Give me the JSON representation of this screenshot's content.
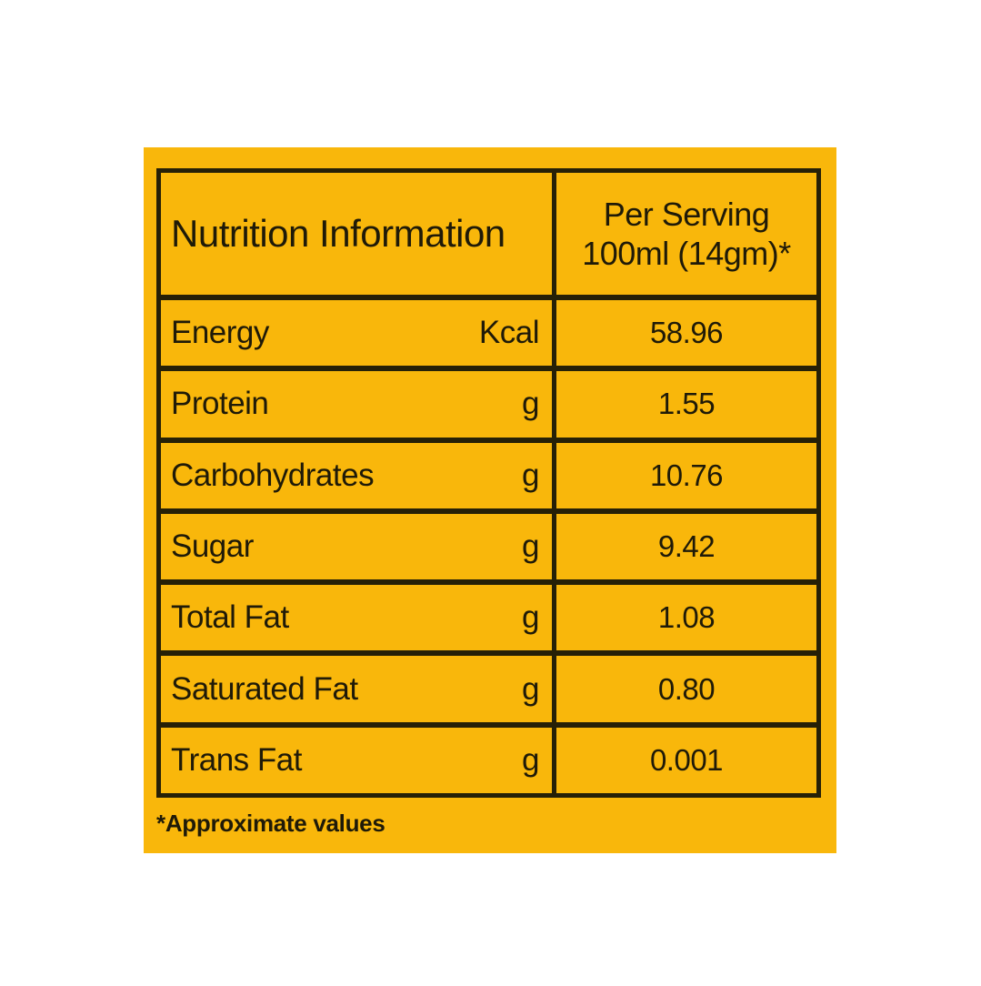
{
  "colors": {
    "panel_background": "#F9B70B",
    "border": "#262007",
    "text": "#1F1A08",
    "page_background": "#FFFFFF"
  },
  "table": {
    "header": {
      "title": "Nutrition Information",
      "serving_line1": "Per Serving",
      "serving_line2": "100ml (14gm)*"
    },
    "rows": [
      {
        "label": "Energy",
        "unit": "Kcal",
        "value": "58.96"
      },
      {
        "label": "Protein",
        "unit": "g",
        "value": "1.55"
      },
      {
        "label": "Carbohydrates",
        "unit": "g",
        "value": "10.76"
      },
      {
        "label": "Sugar",
        "unit": "g",
        "value": "9.42"
      },
      {
        "label": "Total Fat",
        "unit": "g",
        "value": "1.08"
      },
      {
        "label": "Saturated Fat",
        "unit": "g",
        "value": "0.80"
      },
      {
        "label": "Trans Fat",
        "unit": "g",
        "value": "0.001"
      }
    ],
    "footnote": "*Approximate values"
  }
}
